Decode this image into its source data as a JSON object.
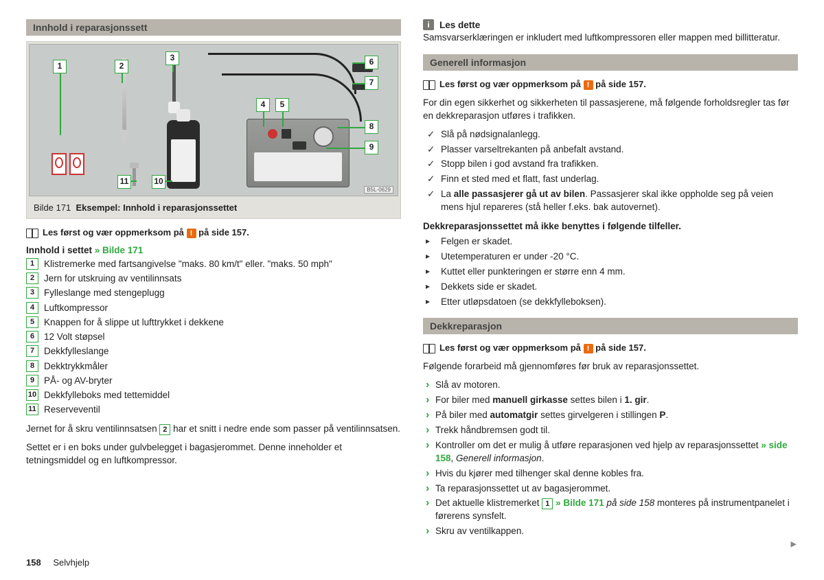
{
  "page": {
    "number": "158",
    "section": "Selvhjelp",
    "image_code": "B5L-0629"
  },
  "left": {
    "header": "Innhold i reparasjonssett",
    "caption_prefix": "Bilde 171",
    "caption_text": "Eksempel: Innhold i reparasjonssettet",
    "read_first_pre": "Les først og vær oppmerksom på",
    "read_first_post": "på side 157.",
    "list_title_pre": "Innhold i settet ",
    "list_title_link": "» Bilde 171",
    "items": [
      {
        "n": "1",
        "t": "Klistremerke med fartsangivelse \"maks. 80 km/t\" eller. \"maks. 50 mph\""
      },
      {
        "n": "2",
        "t": "Jern for utskruing av ventilinnsats"
      },
      {
        "n": "3",
        "t": "Fylleslange med stengeplugg"
      },
      {
        "n": "4",
        "t": "Luftkompressor"
      },
      {
        "n": "5",
        "t": "Knappen for å slippe ut lufttrykket i dekkene"
      },
      {
        "n": "6",
        "t": "12 Volt støpsel"
      },
      {
        "n": "7",
        "t": "Dekkfylleslange"
      },
      {
        "n": "8",
        "t": "Dekktrykkmåler"
      },
      {
        "n": "9",
        "t": "PÅ- og AV-bryter"
      },
      {
        "n": "10",
        "t": "Dekkfylleboks med tettemiddel"
      },
      {
        "n": "11",
        "t": "Reserveventil"
      }
    ],
    "para1_a": "Jernet for å skru ventilinnsatsen ",
    "para1_n": "2",
    "para1_b": " har et snitt i nedre ende som passer på ventilinnsatsen.",
    "para2": "Settet er i en boks under gulvbelegget i bagasjerommet. Denne inneholder et tetningsmiddel og en luftkompressor."
  },
  "right": {
    "note_label": "Les dette",
    "note_text": "Samsvarserklæringen er inkludert med luftkompressoren eller mappen med billitteratur.",
    "header1": "Generell informasjon",
    "read_first_pre": "Les først og vær oppmerksom på",
    "read_first_post": "på side 157.",
    "intro": "For din egen sikkerhet og sikkerheten til passasjerene, må følgende forholdsregler tas før en dekkreparasjon utføres i trafikken.",
    "checks": [
      "Slå på nødsignalanlegg.",
      "Plasser varseltrekanten på anbefalt avstand.",
      "Stopp bilen i god avstand fra trafikken.",
      "Finn et sted med et flatt, fast underlag."
    ],
    "check_last_a": "La ",
    "check_last_b": "alle passasjerer gå ut av bilen",
    "check_last_c": ". Passasjerer skal ikke oppholde seg på veien mens hjul repareres (stå heller f.eks. bak autovernet).",
    "notuse_title": "Dekkreparasjonssettet må ikke benyttes i følgende tilfeller.",
    "notuse": [
      "Felgen er skadet.",
      "Utetemperaturen er under -20 °C.",
      "Kuttet eller punkteringen er større enn 4 mm.",
      "Dekkets side er skadet.",
      "Etter utløpsdatoen (se dekkfylleboksen)."
    ],
    "header2": "Dekkreparasjon",
    "prep_intro": "Følgende forarbeid må gjennomføres før bruk av reparasjonssettet.",
    "steps_simple": {
      "s1": "Slå av motoren.",
      "s2a": "For biler med ",
      "s2b": "manuell girkasse",
      "s2c": " settes bilen i ",
      "s2d": "1. gir",
      "s2e": ".",
      "s3a": "På biler med ",
      "s3b": "automatgir",
      "s3c": " settes girvelgeren i stillingen ",
      "s3d": "P",
      "s3e": ".",
      "s4": "Trekk håndbremsen godt til.",
      "s5a": "Kontroller om det er mulig å utføre reparasjonen ved hjelp av reparasjonssettet ",
      "s5link": "» side 158",
      "s5b": ", ",
      "s5i": "Generell informasjon",
      "s5c": ".",
      "s6": "Hvis du kjører med tilhenger skal denne kobles fra.",
      "s7": "Ta reparasjonssettet ut av bagasjerommet.",
      "s8a": "Det aktuelle klistremerket ",
      "s8n": "1",
      "s8link": " » Bilde 171",
      "s8i": " på side 158",
      "s8b": " monteres på instrumentpanelet i førerens synsfelt.",
      "s9": "Skru av ventilkappen."
    }
  }
}
